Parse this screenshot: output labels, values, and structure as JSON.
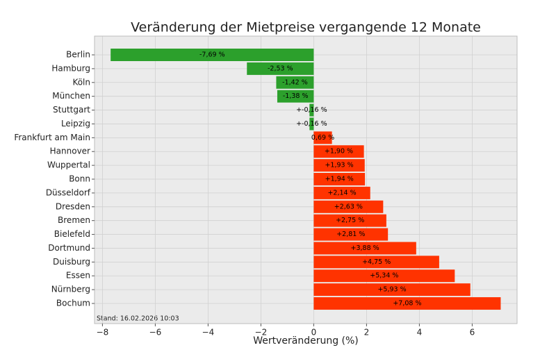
{
  "chart_data": {
    "type": "barh",
    "title": "Veränderung der Mietpreise vergangende 12 Monate",
    "x_label": "Wertveränderung (%)",
    "annotation": "Stand: 16.02.2026 10:03",
    "categories": [
      "Berlin",
      "Hamburg",
      "Köln",
      "München",
      "Stuttgart",
      "Leipzig",
      "Frankfurt am Main",
      "Hannover",
      "Wuppertal",
      "Bonn",
      "Düsseldorf",
      "Dresden",
      "Bremen",
      "Bielefeld",
      "Dortmund",
      "Duisburg",
      "Essen",
      "Nürnberg",
      "Bochum"
    ],
    "values": [
      -7.69,
      -2.53,
      -1.42,
      -1.38,
      -0.16,
      -0.16,
      0.69,
      1.9,
      1.93,
      1.94,
      2.14,
      2.63,
      2.75,
      2.81,
      3.88,
      4.75,
      5.34,
      5.93,
      7.08
    ],
    "value_labels": [
      "-7,69 %",
      "-2,53 %",
      "-1,42 %",
      "-1,38 %",
      "+-0,16 %",
      "+-0,16 %",
      "0,69 %",
      "+1,90 %",
      "+1,93 %",
      "+1,94 %",
      "+2,14 %",
      "+2,63 %",
      "+2,75 %",
      "+2,81 %",
      "+3,88 %",
      "+4,75 %",
      "+5,34 %",
      "+5,93 %",
      "+7,08 %"
    ],
    "colors": [
      "#2ca02c",
      "#2ca02c",
      "#2ca02c",
      "#2ca02c",
      "#2ca02c",
      "#2ca02c",
      "#ff3300",
      "#ff3300",
      "#ff3300",
      "#ff3300",
      "#ff3300",
      "#ff3300",
      "#ff3300",
      "#ff3300",
      "#ff3300",
      "#ff3300",
      "#ff3300",
      "#ff3300",
      "#ff3300"
    ],
    "xlim": [
      -8.3,
      7.7
    ],
    "xticks": [
      {
        "value": -8,
        "label": "−8"
      },
      {
        "value": -6,
        "label": "−6"
      },
      {
        "value": -4,
        "label": "−4"
      },
      {
        "value": -2,
        "label": "−2"
      },
      0,
      2,
      4,
      6
    ],
    "grid": true
  }
}
